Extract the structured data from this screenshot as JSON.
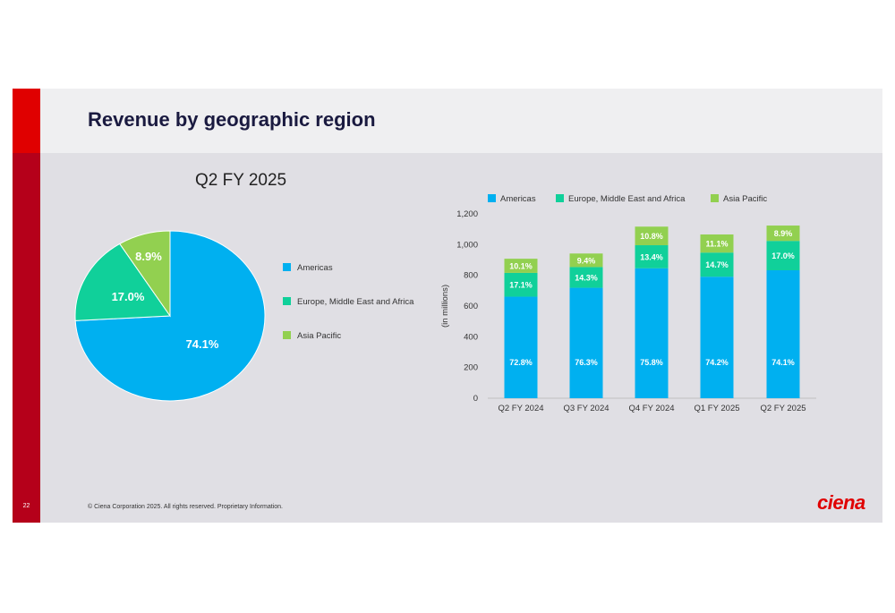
{
  "slide": {
    "title": "Revenue by geographic region",
    "page_number": "22",
    "footer": "© Ciena Corporation 2025. All rights reserved. Proprietary Information.",
    "logo_text": "ciena"
  },
  "colors": {
    "americas": "#00b0f0",
    "emea": "#10d09a",
    "apac": "#92d050",
    "brand_red": "#e00000"
  },
  "chart_data": [
    {
      "type": "pie",
      "title": "Q2 FY 2025",
      "legend_position": "right",
      "slices": [
        {
          "name": "Americas",
          "value": 74.1,
          "label": "74.1%"
        },
        {
          "name": "Europe, Middle East and Africa",
          "value": 17.0,
          "label": "17.0%"
        },
        {
          "name": "Asia Pacific",
          "value": 8.9,
          "label": "8.9%"
        }
      ]
    },
    {
      "type": "bar",
      "stacked": true,
      "legend_position": "top",
      "ylabel": "(in millions)",
      "ylim": [
        0,
        1200
      ],
      "yticks": [
        "0",
        "200",
        "400",
        "600",
        "800",
        "1,000",
        "1,200"
      ],
      "ytick_values": [
        0,
        200,
        400,
        600,
        800,
        1000,
        1200
      ],
      "categories": [
        "Q2 FY 2024",
        "Q3 FY 2024",
        "Q4 FY 2024",
        "Q1 FY 2025",
        "Q2 FY 2025"
      ],
      "series": [
        {
          "name": "Americas",
          "values": [
            661,
            719,
            846,
            791,
            833
          ],
          "labels": [
            "72.8%",
            "76.3%",
            "75.8%",
            "74.2%",
            "74.1%"
          ]
        },
        {
          "name": "Europe, Middle East and Africa",
          "values": [
            155,
            135,
            150,
            157,
            191
          ],
          "labels": [
            "17.1%",
            "14.3%",
            "13.4%",
            "14.7%",
            "17.0%"
          ]
        },
        {
          "name": "Asia Pacific",
          "values": [
            92,
            88,
            121,
            118,
            100
          ],
          "labels": [
            "10.1%",
            "9.4%",
            "10.8%",
            "11.1%",
            "8.9%"
          ]
        }
      ]
    }
  ]
}
